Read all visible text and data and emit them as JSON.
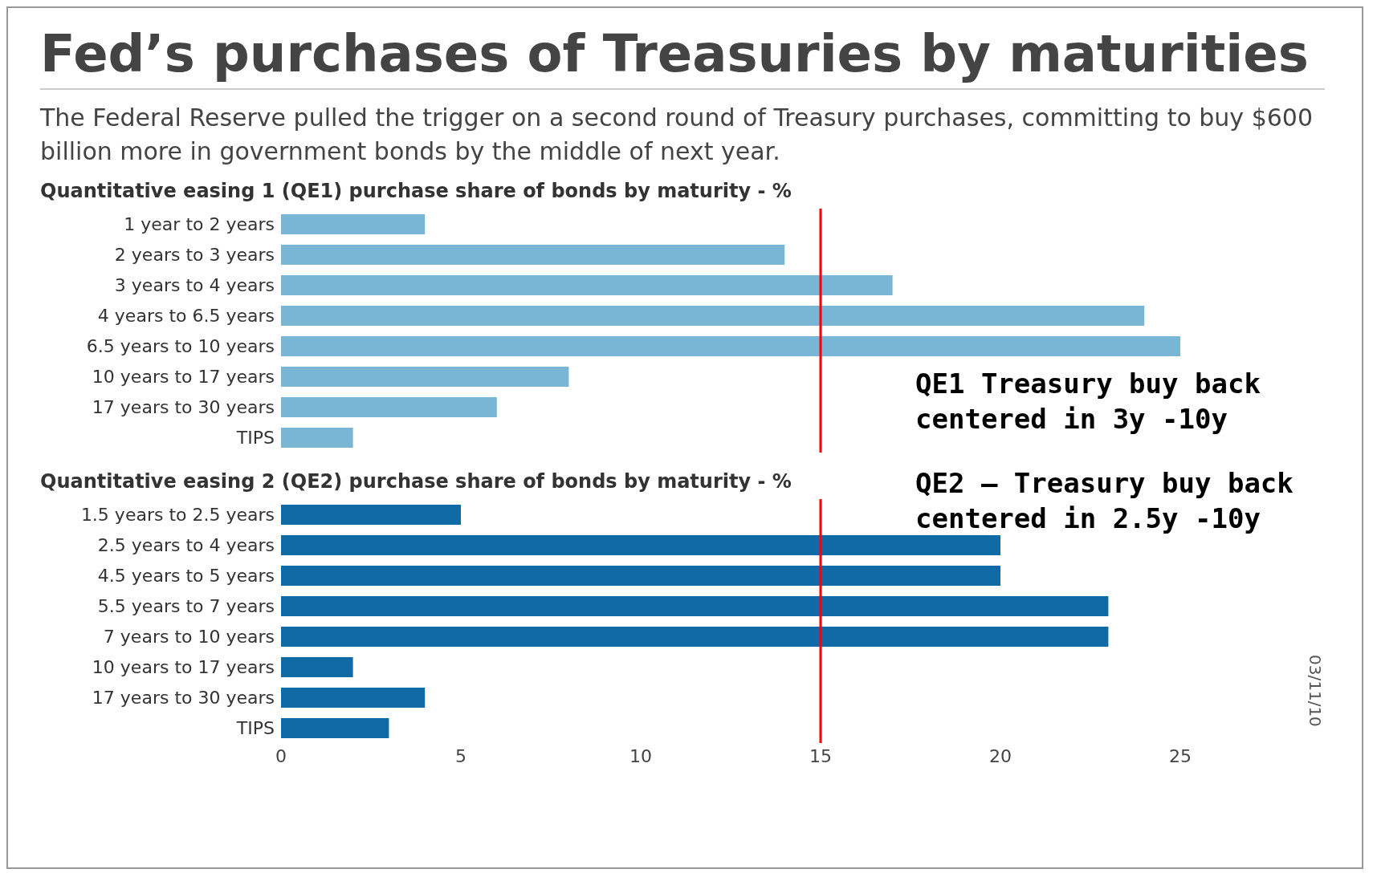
{
  "chart_data": [
    {
      "type": "bar",
      "orientation": "horizontal",
      "title": "Fed’s purchases of Treasuries by maturities",
      "subtitle": "The Federal Reserve pulled the trigger on a second round of Treasury purchases, committing to buy $600 billion more in government bonds by the middle of next year.",
      "annotations": [
        "Quantitative easing 1 (QE1) purchase share of bonds by maturity - %",
        "QE1 Treasury buy back centered in 3y -10y",
        "QE2 – Treasury buy back centered in 2.5y -10y"
      ],
      "categories": [
        "1 year to 2 years",
        "2 years to 3 years",
        "3 years to 4 years",
        "4 years to 6.5 years",
        "6.5 years to 10 years",
        "10 years to 17 years",
        "17 years to 30 years",
        "TIPS"
      ],
      "values": [
        4,
        14,
        17,
        24,
        25,
        8,
        6,
        2
      ],
      "color": "#79b5d5",
      "xlim": [
        0,
        25
      ],
      "xticks": [
        0,
        5,
        10,
        15,
        20,
        25
      ],
      "tick_labels": "y",
      "grid": false,
      "ref_lines": [
        {
          "axis": "x",
          "value": 15,
          "color": "#ff0000"
        }
      ]
    },
    {
      "type": "bar",
      "orientation": "horizontal",
      "title": "Quantitative easing 2 (QE2) purchase share of bonds by maturity - %",
      "annotations": [
        "03/11/10"
      ],
      "categories": [
        "1.5 years to 2.5 years",
        "2.5 years to 4 years",
        "4.5 years to 5 years",
        "5.5 years to 7 years",
        "7 years to 10 years",
        "10 years to 17 years",
        "17 years to 30 years",
        "TIPS"
      ],
      "values": [
        5,
        20,
        20,
        23,
        23,
        2,
        4,
        3
      ],
      "color": "#0f6aa6",
      "xlim": [
        0,
        25
      ],
      "xticks": [
        0,
        5,
        10,
        15,
        20,
        25
      ],
      "grid": false,
      "ref_lines": [
        {
          "axis": "x",
          "value": 15,
          "color": "#ff0000"
        }
      ]
    }
  ]
}
